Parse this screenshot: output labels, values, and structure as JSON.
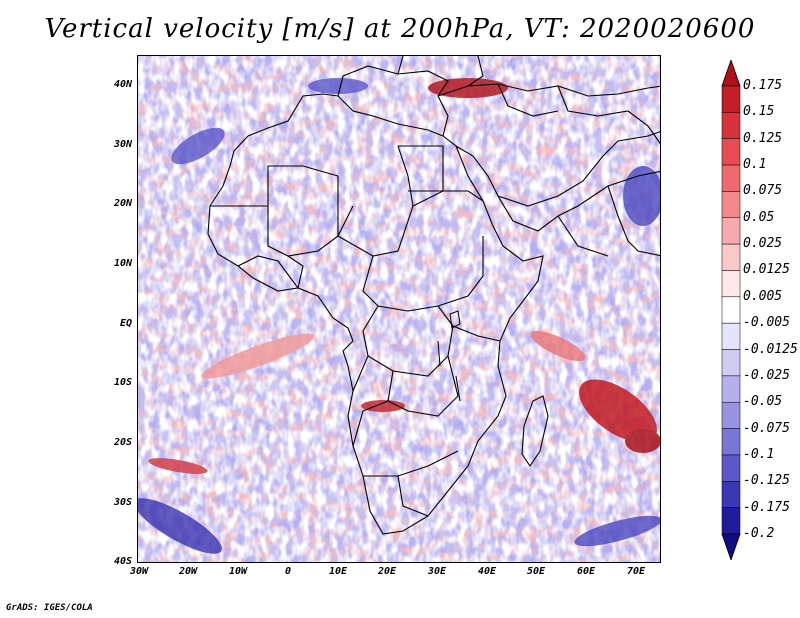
{
  "title": "Vertical velocity [m/s] at 200hPa, VT: 2020020600",
  "credit": "GrADS: IGES/COLA",
  "map": {
    "region": "Africa",
    "latitude_labels": [
      "40N",
      "30N",
      "20N",
      "10N",
      "EQ",
      "10S",
      "20S",
      "30S",
      "40S"
    ],
    "longitude_labels": [
      "30W",
      "20W",
      "10W",
      "0",
      "10E",
      "20E",
      "30E",
      "40E",
      "50E",
      "60E",
      "70E"
    ],
    "field": "vertical velocity",
    "level": "200hPa",
    "valid_time": "2020020600"
  },
  "colorbar": {
    "labels": [
      "0.175",
      "0.15",
      "0.125",
      "0.1",
      "0.075",
      "0.05",
      "0.025",
      "0.0125",
      "0.005",
      "-0.005",
      "-0.0125",
      "-0.025",
      "-0.05",
      "-0.075",
      "-0.1",
      "-0.125",
      "-0.175",
      "-0.2"
    ],
    "colors": [
      "#b0101a",
      "#c41e2a",
      "#d8323c",
      "#e64c52",
      "#ee6a6e",
      "#f28a8c",
      "#f6aaab",
      "#facacb",
      "#fde8e8",
      "#ffffff",
      "#e6e4fa",
      "#cfccf4",
      "#b4b0ec",
      "#9894e2",
      "#7a76d6",
      "#5c58c8",
      "#3c38b4",
      "#201c9a",
      "#120c82"
    ]
  }
}
